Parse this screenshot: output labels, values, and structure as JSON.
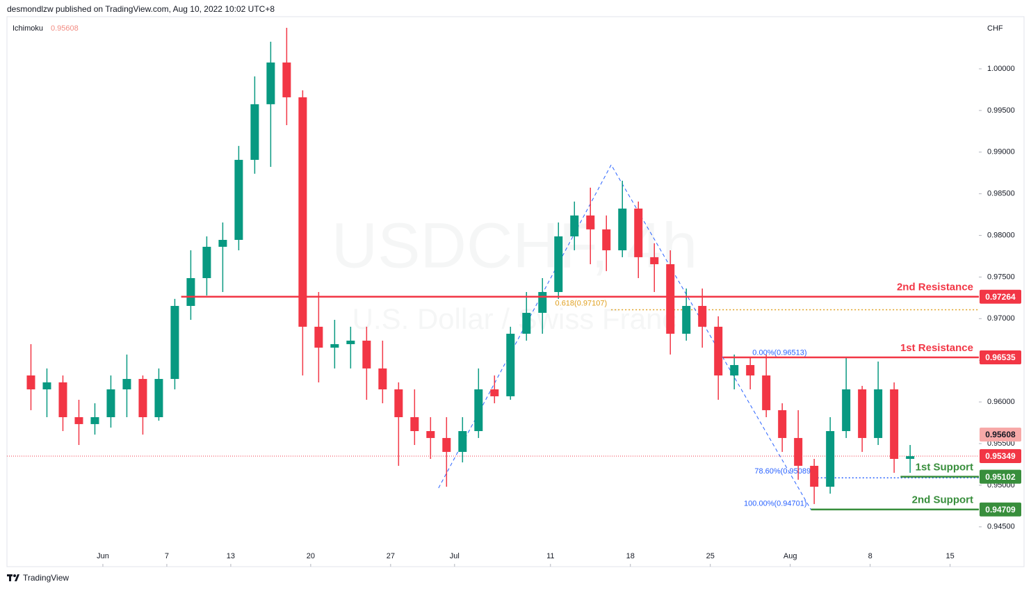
{
  "chart_data": {
    "type": "candlestick",
    "header": "desmondlzw published on TradingView.com, Aug 10, 2022 10:02 UTC+8",
    "title": "USDCHF, 4h",
    "subtitle": "U.S. Dollar / Swiss Franc",
    "currency": "CHF",
    "footer": "TradingView",
    "indicator": {
      "name": "Ichimoku",
      "value": 0.95608,
      "color": "#f7a9a8"
    },
    "up_color": "#089981",
    "down_color": "#f23645",
    "x": [
      -5,
      -4,
      -3,
      -2,
      -1,
      0,
      1,
      2,
      3,
      4,
      5,
      6,
      7,
      8,
      9,
      10,
      11,
      12,
      13,
      14,
      15,
      16,
      17,
      18,
      19,
      20,
      21,
      22,
      23,
      24,
      25,
      26,
      27,
      28,
      29,
      30,
      31,
      32,
      33,
      34,
      35,
      36,
      37,
      38,
      39,
      40,
      41,
      42,
      43,
      44,
      45,
      46,
      47,
      48,
      49,
      50
    ],
    "open": [
      0.96318,
      0.96151,
      0.96235,
      0.95817,
      0.95734,
      0.95817,
      0.96151,
      0.96276,
      0.95817,
      0.96276,
      0.97153,
      0.97487,
      0.97863,
      0.97946,
      0.98907,
      0.99575,
      1.00076,
      0.99658,
      0.96903,
      0.96652,
      0.96694,
      0.96736,
      0.96402,
      0.96151,
      0.95817,
      0.9565,
      0.95567,
      0.954,
      0.9565,
      0.96151,
      0.96068,
      0.96819,
      0.9707,
      0.9732,
      0.97988,
      0.98239,
      0.98072,
      0.97821,
      0.98322,
      0.97738,
      0.97654,
      0.96819,
      0.97153,
      0.96903,
      0.96318,
      0.96443,
      0.96318,
      0.95901,
      0.95567,
      0.95233,
      0.94982,
      0.9565,
      0.96151,
      0.95567,
      0.96151,
      0.95316
    ],
    "high": [
      0.96694,
      0.96402,
      0.96318,
      0.96026,
      0.95984,
      0.96318,
      0.96569,
      0.96318,
      0.96402,
      0.97237,
      0.97821,
      0.97988,
      0.98155,
      0.99074,
      0.99909,
      1.00326,
      1.00493,
      0.99742,
      0.9732,
      0.96986,
      0.96903,
      0.96903,
      0.96736,
      0.96235,
      0.96151,
      0.95817,
      0.95817,
      0.95817,
      0.96402,
      0.96318,
      0.96903,
      0.9732,
      0.97487,
      0.98155,
      0.98406,
      0.98573,
      0.98239,
      0.98656,
      0.98406,
      0.97905,
      0.97821,
      0.97362,
      0.97362,
      0.97028,
      0.96569,
      0.96527,
      0.96569,
      0.95984,
      0.95901,
      0.95316,
      0.95817,
      0.96527,
      0.96193,
      0.96485,
      0.96235,
      0.95483
    ],
    "low": [
      0.95901,
      0.95817,
      0.9565,
      0.95483,
      0.95608,
      0.95692,
      0.95817,
      0.95608,
      0.95775,
      0.96151,
      0.96986,
      0.97278,
      0.9732,
      0.97821,
      0.9874,
      0.98823,
      0.99324,
      0.96318,
      0.96235,
      0.96402,
      0.96402,
      0.96026,
      0.95984,
      0.95233,
      0.95483,
      0.95316,
      0.94982,
      0.95274,
      0.95567,
      0.95984,
      0.96026,
      0.96736,
      0.96819,
      0.97237,
      0.97821,
      0.97654,
      0.97571,
      0.97738,
      0.97487,
      0.9732,
      0.96569,
      0.96736,
      0.96652,
      0.96026,
      0.96151,
      0.96151,
      0.95817,
      0.954,
      0.95066,
      0.94774,
      0.94899,
      0.95567,
      0.954,
      0.95483,
      0.95149,
      0.95149
    ],
    "close": [
      0.96151,
      0.96235,
      0.95817,
      0.95734,
      0.95817,
      0.96151,
      0.96276,
      0.95817,
      0.96276,
      0.97153,
      0.97487,
      0.97863,
      0.97946,
      0.98907,
      0.99575,
      1.00076,
      0.99658,
      0.96903,
      0.96652,
      0.96694,
      0.96736,
      0.96402,
      0.96151,
      0.95817,
      0.9565,
      0.95567,
      0.954,
      0.9565,
      0.96151,
      0.96068,
      0.96819,
      0.9707,
      0.9732,
      0.97988,
      0.98239,
      0.98072,
      0.97821,
      0.98322,
      0.97738,
      0.97654,
      0.96819,
      0.97153,
      0.96903,
      0.96318,
      0.96443,
      0.96318,
      0.95901,
      0.95567,
      0.95233,
      0.94982,
      0.9565,
      0.96151,
      0.95567,
      0.96151,
      0.95316,
      0.95349
    ],
    "xlim": [
      -6,
      54.8
    ],
    "xticks": [
      {
        "value": 0,
        "label": "Jun"
      },
      {
        "value": 4,
        "label": "7"
      },
      {
        "value": 8,
        "label": "13"
      },
      {
        "value": 13,
        "label": "20"
      },
      {
        "value": 18,
        "label": "27"
      },
      {
        "value": 22,
        "label": "Jul"
      },
      {
        "value": 28,
        "label": "11"
      },
      {
        "value": 33,
        "label": "18"
      },
      {
        "value": 38,
        "label": "25"
      },
      {
        "value": 43,
        "label": "Aug"
      },
      {
        "value": 48,
        "label": "8"
      },
      {
        "value": 53,
        "label": "15"
      }
    ],
    "ylim": [
      0.94022,
      1.00743
    ],
    "yticks": [
      {
        "value": 0.945,
        "label": "0.94500"
      },
      {
        "value": 0.95,
        "label": "0.95000"
      },
      {
        "value": 0.955,
        "label": "0.95500"
      },
      {
        "value": 0.96,
        "label": "0.96000"
      },
      {
        "value": 0.965,
        "label": "0.96500"
      },
      {
        "value": 0.97,
        "label": "0.97000"
      },
      {
        "value": 0.975,
        "label": "0.97500"
      },
      {
        "value": 0.98,
        "label": "0.98000"
      },
      {
        "value": 0.985,
        "label": "0.98500"
      },
      {
        "value": 0.99,
        "label": "0.99000"
      },
      {
        "value": 0.995,
        "label": "0.99500"
      },
      {
        "value": 1.0,
        "label": "1.00000"
      }
    ],
    "current_price": {
      "value": 0.95349,
      "color": "#f23645"
    },
    "levels": [
      {
        "label": "2nd Resistance",
        "value": 0.97264,
        "color": "#f23645",
        "start": 4.9
      },
      {
        "label": "1st Resistance",
        "value": 0.96535,
        "color": "#f23645",
        "start": 38.8
      },
      {
        "label": "1st Support",
        "value": 0.95102,
        "color": "#388e3c",
        "start": 49.9
      },
      {
        "label": "2nd Support",
        "value": 0.94709,
        "color": "#388e3c",
        "start": 44.3
      }
    ],
    "fib": [
      {
        "label": "0.618(0.97107)",
        "value": 0.97107,
        "color": "#e0a020",
        "start": 31.8,
        "line": "dotted"
      },
      {
        "label": "0.00%(0.96513)",
        "value": 0.96513,
        "color": "#2962ff",
        "start": 44.3
      },
      {
        "label": "78.60%(0.95089)",
        "value": 0.95089,
        "color": "#2962ff",
        "start": 44.7,
        "line": "dotted"
      },
      {
        "label": "100.00%(0.94701)",
        "value": 0.94701,
        "color": "#2962ff",
        "start": 44.3
      }
    ],
    "trend_line": {
      "x": [
        21.0,
        31.8,
        44.3
      ],
      "values": [
        0.94966,
        0.98848,
        0.94706
      ],
      "color": "#2962ff"
    }
  }
}
